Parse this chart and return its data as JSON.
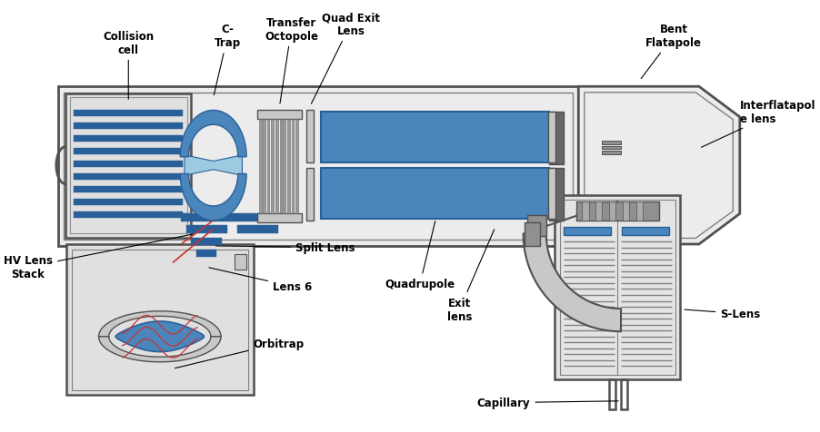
{
  "bg_color": "#ffffff",
  "gray": "#808080",
  "dgray": "#505050",
  "mgray": "#909090",
  "lgray": "#c8c8c8",
  "blue_d": "#2a6099",
  "blue_m": "#4a85bc",
  "blue_l": "#6baed6",
  "blue_p": "#9ecae1",
  "red": "#cc3333",
  "fig_w": 9.02,
  "fig_h": 4.77,
  "labels": {
    "collision_cell": "Collision\ncell",
    "c_trap": "C-\nTrap",
    "transfer_octapole": "Transfer\nOctopole",
    "quad_exit_lens": "Quad Exit\nLens",
    "bent_flatapole": "Bent\nFlatapole",
    "interflatapole_lens": "Interflatapol\ne lens",
    "hv_lens_stack": "HV Lens\nStack",
    "split_lens": "Split Lens",
    "lens6": "Lens 6",
    "orbitrap": "Orbitrap",
    "quadrupole": "Quadrupole",
    "exit_lens": "Exit\nlens",
    "capillary": "Capillary",
    "s_lens": "S-Lens"
  }
}
